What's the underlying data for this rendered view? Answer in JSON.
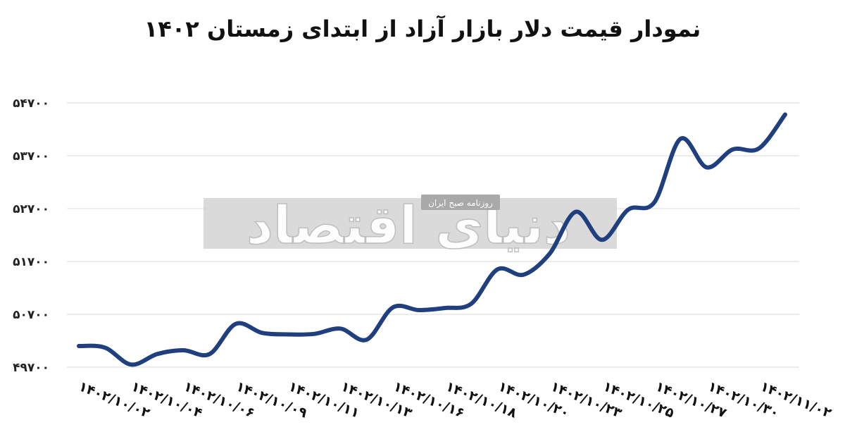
{
  "chart_data": {
    "type": "line",
    "title": "نمودار قیمت دلار بازار آزاد از ابتدای زمستان ۱۴۰۲",
    "xlabel": "",
    "ylabel": "",
    "ylim": [
      49700,
      54700
    ],
    "yticks": [
      "۴۹۷۰۰",
      "۵۰۷۰۰",
      "۵۱۷۰۰",
      "۵۲۷۰۰",
      "۵۳۷۰۰",
      "۵۴۷۰۰"
    ],
    "ytick_values": [
      49700,
      50700,
      51700,
      52700,
      53700,
      54700
    ],
    "grid": true,
    "legend": "none",
    "line_color": "#1f3f7f",
    "x_tick_labels": [
      "۱۴۰۲/۱۰/۰۲",
      "۱۴۰۲/۱۰/۰۴",
      "۱۴۰۲/۱۰/۰۶",
      "۱۴۰۲/۱۰/۰۹",
      "۱۴۰۲/۱۰/۱۱",
      "۱۴۰۲/۱۰/۱۳",
      "۱۴۰۲/۱۰/۱۶",
      "۱۴۰۲/۱۰/۱۸",
      "۱۴۰۲/۱۰/۲۰",
      "۱۴۰۲/۱۰/۲۳",
      "۱۴۰۲/۱۰/۲۵",
      "۱۴۰۲/۱۰/۲۷",
      "۱۴۰۲/۱۰/۳۰",
      "۱۴۰۲/۱۱/۰۲"
    ],
    "series": [
      {
        "values": [
          50100,
          50070,
          49750,
          49950,
          50020,
          49950,
          50520,
          50350,
          50320,
          50330,
          50430,
          50220,
          50830,
          50780,
          50820,
          50900,
          51550,
          51450,
          51850,
          52640,
          52110,
          52680,
          52820,
          54020,
          53480,
          53820,
          53840,
          54480
        ]
      }
    ]
  },
  "watermark": {
    "main": "دنیای اقتصاد",
    "sub": "روزنامه صبح ایران",
    "band_color": "#d4d4d4"
  }
}
